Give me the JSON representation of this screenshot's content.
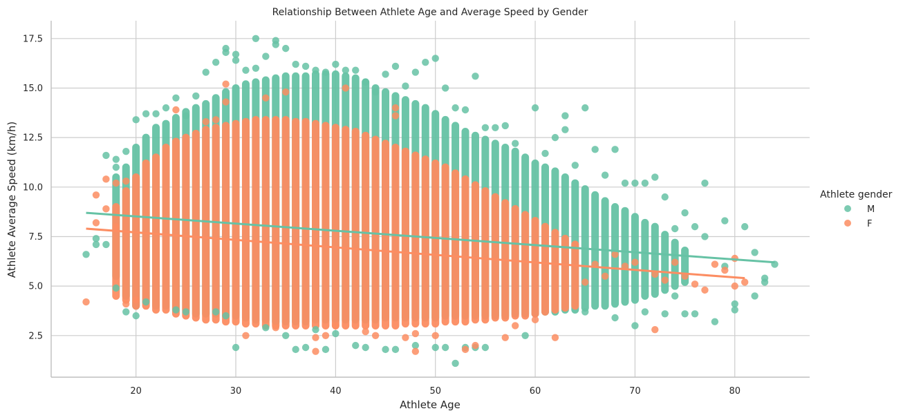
{
  "chart_data": {
    "type": "scatter",
    "title": "Relationship Between Athlete Age and Average Speed by Gender",
    "xlabel": "Athlete Age",
    "ylabel": "Athlete Average Speed (km/h)",
    "xlim": [
      11.5,
      87.5
    ],
    "ylim": [
      0.4,
      18.4
    ],
    "xticks": [
      20,
      30,
      40,
      50,
      60,
      70,
      80
    ],
    "yticks": [
      2.5,
      5.0,
      7.5,
      10.0,
      12.5,
      15.0,
      17.5
    ],
    "ytick_labels": [
      "2.5",
      "5.0",
      "7.5",
      "10.0",
      "12.5",
      "15.0",
      "17.5"
    ],
    "grid": true,
    "legend": {
      "title": "Athlete gender",
      "position": "right"
    },
    "series": [
      {
        "name": "M",
        "color": "#66c2a5",
        "points": [
          [
            15,
            6.6
          ],
          [
            16,
            7.1
          ],
          [
            16,
            7.4
          ],
          [
            17,
            11.6
          ],
          [
            17,
            7.1
          ],
          [
            18,
            11.4
          ],
          [
            18,
            4.9
          ],
          [
            18,
            11.0
          ],
          [
            19,
            11.8
          ],
          [
            19,
            3.7
          ],
          [
            20,
            13.4
          ],
          [
            20,
            3.5
          ],
          [
            21,
            13.7
          ],
          [
            21,
            4.2
          ],
          [
            22,
            13.7
          ],
          [
            23,
            14.0
          ],
          [
            24,
            14.5
          ],
          [
            24,
            3.8
          ],
          [
            25,
            13.6
          ],
          [
            25,
            3.7
          ],
          [
            26,
            14.6
          ],
          [
            27,
            15.8
          ],
          [
            28,
            16.3
          ],
          [
            28,
            3.7
          ],
          [
            29,
            17.0
          ],
          [
            29,
            16.8
          ],
          [
            29,
            3.5
          ],
          [
            30,
            16.7
          ],
          [
            30,
            16.4
          ],
          [
            30,
            1.9
          ],
          [
            31,
            15.9
          ],
          [
            32,
            17.5
          ],
          [
            32,
            16.0
          ],
          [
            33,
            16.6
          ],
          [
            33,
            2.9
          ],
          [
            34,
            17.4
          ],
          [
            34,
            17.2
          ],
          [
            35,
            17.0
          ],
          [
            35,
            2.5
          ],
          [
            36,
            16.2
          ],
          [
            36,
            1.8
          ],
          [
            37,
            16.1
          ],
          [
            37,
            1.9
          ],
          [
            38,
            15.9
          ],
          [
            38,
            2.8
          ],
          [
            39,
            15.8
          ],
          [
            39,
            1.8
          ],
          [
            40,
            16.2
          ],
          [
            40,
            2.6
          ],
          [
            41,
            15.9
          ],
          [
            42,
            15.9
          ],
          [
            42,
            2.0
          ],
          [
            43,
            15.3
          ],
          [
            43,
            1.9
          ],
          [
            44,
            14.8
          ],
          [
            45,
            15.7
          ],
          [
            45,
            1.8
          ],
          [
            46,
            16.1
          ],
          [
            46,
            1.8
          ],
          [
            47,
            15.1
          ],
          [
            48,
            15.8
          ],
          [
            48,
            2.0
          ],
          [
            49,
            16.3
          ],
          [
            50,
            16.5
          ],
          [
            50,
            1.9
          ],
          [
            51,
            15.0
          ],
          [
            51,
            1.9
          ],
          [
            52,
            14.0
          ],
          [
            52,
            1.1
          ],
          [
            53,
            13.9
          ],
          [
            53,
            1.9
          ],
          [
            54,
            15.6
          ],
          [
            54,
            1.9
          ],
          [
            55,
            13.0
          ],
          [
            55,
            1.9
          ],
          [
            56,
            13.0
          ],
          [
            57,
            13.1
          ],
          [
            58,
            12.2
          ],
          [
            59,
            2.5
          ],
          [
            60,
            14.0
          ],
          [
            61,
            11.7
          ],
          [
            62,
            12.5
          ],
          [
            63,
            13.6
          ],
          [
            63,
            12.9
          ],
          [
            64,
            11.1
          ],
          [
            65,
            14.0
          ],
          [
            65,
            3.7
          ],
          [
            66,
            11.9
          ],
          [
            67,
            10.6
          ],
          [
            68,
            11.9
          ],
          [
            68,
            3.4
          ],
          [
            69,
            10.2
          ],
          [
            70,
            10.2
          ],
          [
            70,
            3.0
          ],
          [
            71,
            10.2
          ],
          [
            71,
            3.7
          ],
          [
            72,
            10.5
          ],
          [
            73,
            9.5
          ],
          [
            73,
            3.6
          ],
          [
            74,
            7.9
          ],
          [
            74,
            4.5
          ],
          [
            75,
            8.7
          ],
          [
            75,
            3.6
          ],
          [
            76,
            8.0
          ],
          [
            76,
            3.6
          ],
          [
            77,
            10.2
          ],
          [
            77,
            7.5
          ],
          [
            78,
            3.2
          ],
          [
            79,
            8.3
          ],
          [
            79,
            6.0
          ],
          [
            80,
            4.1
          ],
          [
            80,
            3.8
          ],
          [
            81,
            8.0
          ],
          [
            82,
            6.7
          ],
          [
            82,
            4.5
          ],
          [
            83,
            5.4
          ],
          [
            83,
            5.2
          ],
          [
            84,
            6.1
          ]
        ],
        "ranges": [
          [
            18,
            5.5,
            10.5
          ],
          [
            19,
            4.5,
            11.0
          ],
          [
            20,
            4.0,
            12.0
          ],
          [
            21,
            4.2,
            12.5
          ],
          [
            22,
            4.0,
            13.0
          ],
          [
            23,
            4.0,
            13.2
          ],
          [
            24,
            3.8,
            13.5
          ],
          [
            25,
            3.8,
            13.8
          ],
          [
            26,
            3.6,
            14.0
          ],
          [
            27,
            3.6,
            14.2
          ],
          [
            28,
            3.6,
            14.5
          ],
          [
            29,
            3.5,
            14.8
          ],
          [
            30,
            3.5,
            15.0
          ],
          [
            31,
            3.4,
            15.2
          ],
          [
            32,
            3.3,
            15.3
          ],
          [
            33,
            3.3,
            15.4
          ],
          [
            34,
            3.2,
            15.5
          ],
          [
            35,
            3.2,
            15.6
          ],
          [
            36,
            3.2,
            15.6
          ],
          [
            37,
            3.2,
            15.6
          ],
          [
            38,
            3.3,
            15.7
          ],
          [
            39,
            3.3,
            15.7
          ],
          [
            40,
            3.3,
            15.7
          ],
          [
            41,
            3.3,
            15.6
          ],
          [
            42,
            3.3,
            15.5
          ],
          [
            43,
            3.3,
            15.3
          ],
          [
            44,
            3.3,
            15.0
          ],
          [
            45,
            3.4,
            14.8
          ],
          [
            46,
            3.4,
            14.6
          ],
          [
            47,
            3.4,
            14.4
          ],
          [
            48,
            3.4,
            14.2
          ],
          [
            49,
            3.4,
            14.0
          ],
          [
            50,
            3.4,
            13.7
          ],
          [
            51,
            3.5,
            13.4
          ],
          [
            52,
            3.5,
            13.1
          ],
          [
            53,
            3.5,
            12.8
          ],
          [
            54,
            3.5,
            12.6
          ],
          [
            55,
            3.5,
            12.4
          ],
          [
            56,
            3.5,
            12.2
          ],
          [
            57,
            3.5,
            12.0
          ],
          [
            58,
            3.6,
            11.8
          ],
          [
            59,
            3.6,
            11.5
          ],
          [
            60,
            3.6,
            11.2
          ],
          [
            61,
            3.7,
            11.0
          ],
          [
            62,
            3.7,
            10.8
          ],
          [
            63,
            3.8,
            10.5
          ],
          [
            64,
            3.8,
            10.2
          ],
          [
            65,
            3.9,
            9.9
          ],
          [
            66,
            4.0,
            9.6
          ],
          [
            67,
            4.0,
            9.3
          ],
          [
            68,
            4.1,
            9.0
          ],
          [
            69,
            4.2,
            8.8
          ],
          [
            70,
            4.3,
            8.5
          ],
          [
            71,
            4.5,
            8.2
          ],
          [
            72,
            4.6,
            8.0
          ],
          [
            73,
            4.8,
            7.6
          ],
          [
            74,
            5.0,
            7.2
          ],
          [
            75,
            5.2,
            6.8
          ]
        ],
        "trend": {
          "x": [
            15,
            84
          ],
          "y": [
            8.7,
            6.2
          ]
        }
      },
      {
        "name": "F",
        "color": "#fc8d62",
        "points": [
          [
            15,
            4.2
          ],
          [
            16,
            9.6
          ],
          [
            16,
            8.2
          ],
          [
            17,
            10.4
          ],
          [
            17,
            8.9
          ],
          [
            18,
            10.2
          ],
          [
            18,
            8.0
          ],
          [
            19,
            10.3
          ],
          [
            19,
            4.1
          ],
          [
            20,
            4.3
          ],
          [
            24,
            13.9
          ],
          [
            27,
            13.3
          ],
          [
            28,
            13.4
          ],
          [
            29,
            15.2
          ],
          [
            29,
            14.3
          ],
          [
            31,
            2.5
          ],
          [
            33,
            14.5
          ],
          [
            34,
            2.9
          ],
          [
            35,
            14.8
          ],
          [
            38,
            2.4
          ],
          [
            38,
            1.7
          ],
          [
            39,
            2.5
          ],
          [
            40,
            3.0
          ],
          [
            41,
            15.0
          ],
          [
            43,
            2.7
          ],
          [
            44,
            2.5
          ],
          [
            46,
            14.0
          ],
          [
            46,
            13.6
          ],
          [
            47,
            2.4
          ],
          [
            48,
            2.6
          ],
          [
            48,
            1.7
          ],
          [
            50,
            2.5
          ],
          [
            53,
            1.8
          ],
          [
            54,
            2.0
          ],
          [
            57,
            2.4
          ],
          [
            58,
            3.0
          ],
          [
            60,
            3.3
          ],
          [
            62,
            2.4
          ],
          [
            65,
            5.2
          ],
          [
            66,
            6.1
          ],
          [
            67,
            5.5
          ],
          [
            68,
            6.6
          ],
          [
            69,
            6.0
          ],
          [
            70,
            6.2
          ],
          [
            72,
            5.6
          ],
          [
            72,
            2.8
          ],
          [
            73,
            5.3
          ],
          [
            74,
            6.2
          ],
          [
            75,
            5.5
          ],
          [
            76,
            5.1
          ],
          [
            77,
            4.8
          ],
          [
            78,
            6.1
          ],
          [
            79,
            5.8
          ],
          [
            80,
            6.4
          ],
          [
            80,
            5.0
          ],
          [
            81,
            5.2
          ]
        ],
        "ranges": [
          [
            18,
            4.5,
            9.0
          ],
          [
            19,
            4.3,
            9.8
          ],
          [
            20,
            4.0,
            10.5
          ],
          [
            21,
            4.0,
            11.2
          ],
          [
            22,
            3.8,
            11.5
          ],
          [
            23,
            3.8,
            12.0
          ],
          [
            24,
            3.6,
            12.3
          ],
          [
            25,
            3.5,
            12.5
          ],
          [
            26,
            3.4,
            12.7
          ],
          [
            27,
            3.3,
            12.9
          ],
          [
            28,
            3.3,
            13.0
          ],
          [
            29,
            3.2,
            13.1
          ],
          [
            30,
            3.2,
            13.2
          ],
          [
            31,
            3.1,
            13.3
          ],
          [
            32,
            3.1,
            13.4
          ],
          [
            33,
            3.0,
            13.4
          ],
          [
            34,
            3.0,
            13.4
          ],
          [
            35,
            3.0,
            13.4
          ],
          [
            36,
            3.0,
            13.3
          ],
          [
            37,
            3.0,
            13.3
          ],
          [
            38,
            3.0,
            13.2
          ],
          [
            39,
            3.0,
            13.1
          ],
          [
            40,
            3.0,
            13.0
          ],
          [
            41,
            3.0,
            12.9
          ],
          [
            42,
            3.0,
            12.8
          ],
          [
            43,
            3.0,
            12.6
          ],
          [
            44,
            3.0,
            12.4
          ],
          [
            45,
            3.0,
            12.2
          ],
          [
            46,
            3.0,
            12.0
          ],
          [
            47,
            3.1,
            11.8
          ],
          [
            48,
            3.1,
            11.6
          ],
          [
            49,
            3.1,
            11.4
          ],
          [
            50,
            3.1,
            11.2
          ],
          [
            51,
            3.2,
            11.0
          ],
          [
            52,
            3.2,
            10.7
          ],
          [
            53,
            3.2,
            10.4
          ],
          [
            54,
            3.3,
            10.1
          ],
          [
            55,
            3.3,
            9.8
          ],
          [
            56,
            3.4,
            9.5
          ],
          [
            57,
            3.4,
            9.2
          ],
          [
            58,
            3.5,
            8.9
          ],
          [
            59,
            3.5,
            8.6
          ],
          [
            60,
            3.6,
            8.3
          ],
          [
            61,
            3.7,
            8.0
          ],
          [
            62,
            3.8,
            7.7
          ],
          [
            63,
            3.9,
            7.4
          ],
          [
            64,
            4.0,
            7.1
          ]
        ],
        "trend": {
          "x": [
            15,
            81
          ],
          "y": [
            7.9,
            5.4
          ]
        }
      }
    ]
  }
}
